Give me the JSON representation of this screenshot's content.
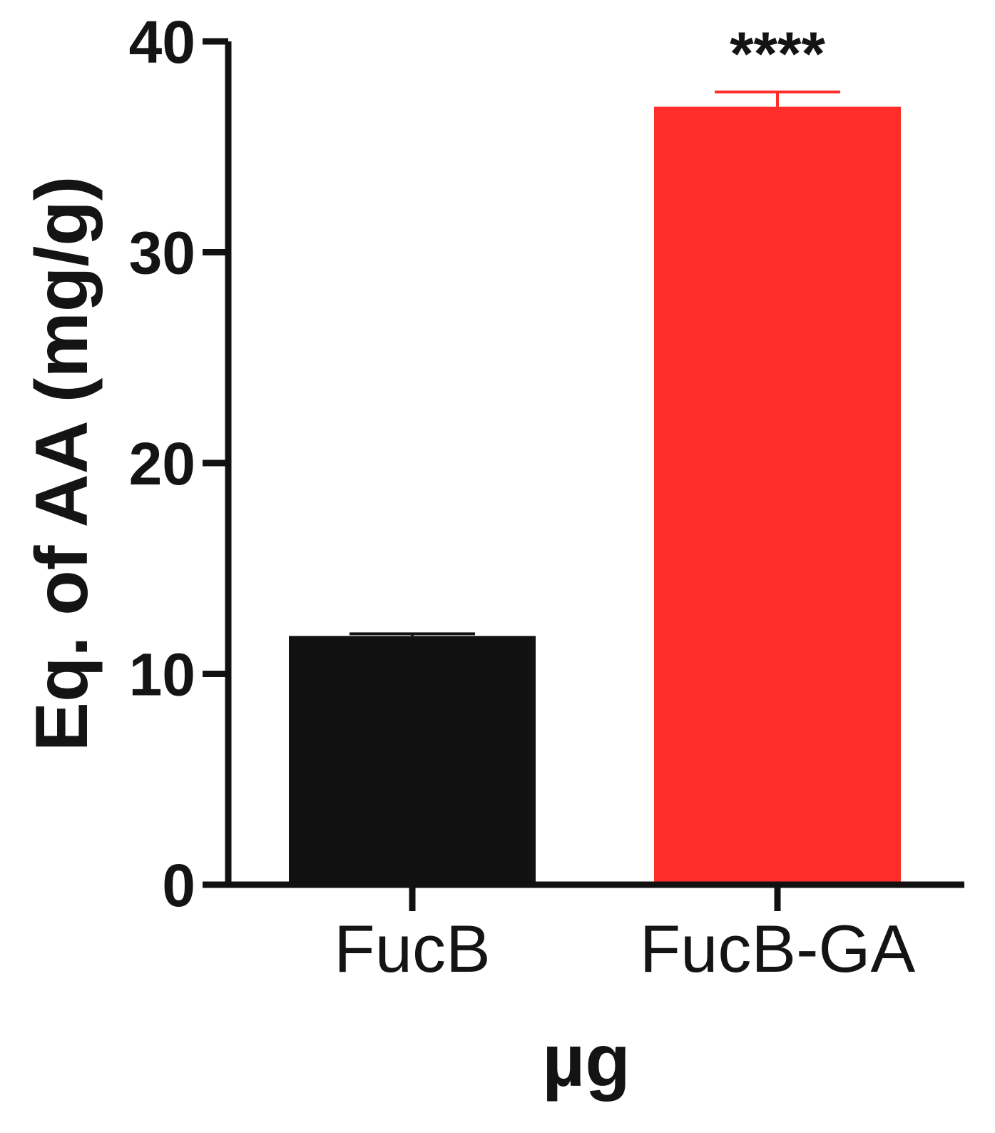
{
  "chart_data": {
    "type": "bar",
    "title": "",
    "xlabel": "µg",
    "ylabel": "Eq. of AA (mg/g)",
    "ylim": [
      0,
      40
    ],
    "yticks": [
      "0",
      "10",
      "20",
      "30",
      "40"
    ],
    "grid": false,
    "categories": [
      "FucB",
      "FucB-GA"
    ],
    "values": [
      11.8,
      36.9
    ],
    "errors": [
      0.1,
      0.7
    ],
    "colors": [
      "#111111",
      "#ff2e2a"
    ],
    "annotations": [
      "",
      "****"
    ]
  }
}
